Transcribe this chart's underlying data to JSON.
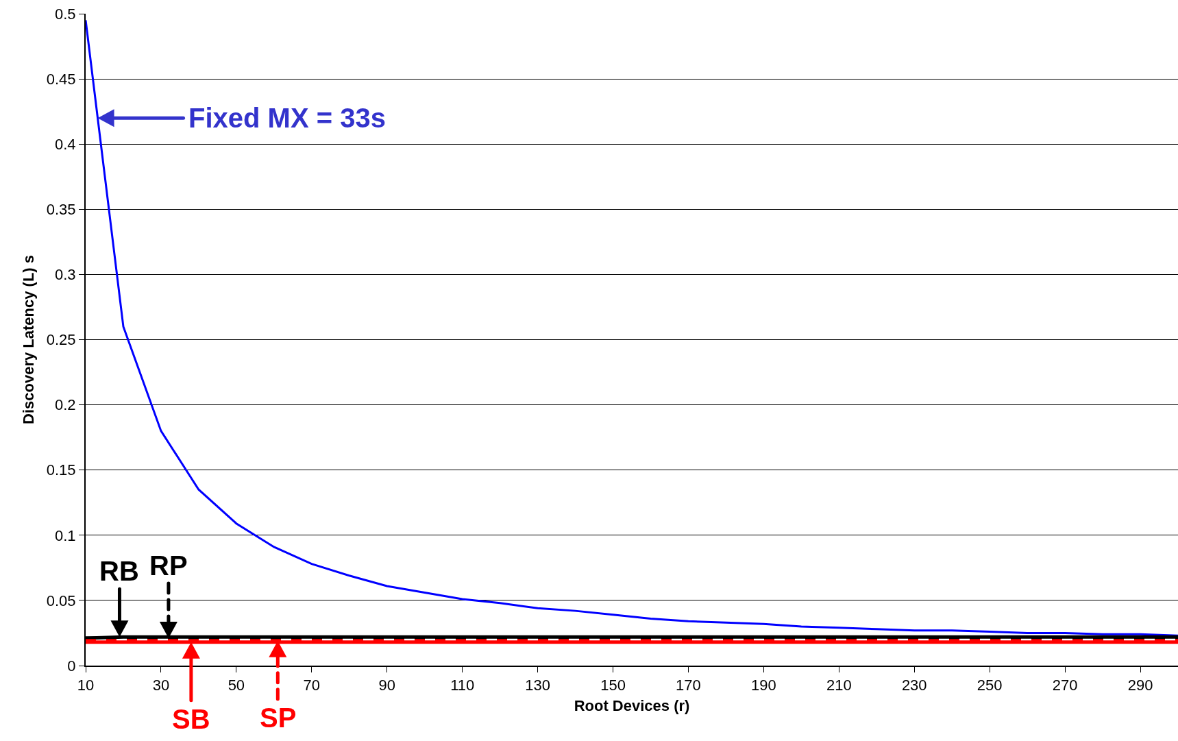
{
  "chart_data": {
    "type": "line",
    "xlabel": "Root Devices (r)",
    "ylabel": "Discovery Latency (L) s",
    "x": [
      10,
      20,
      30,
      40,
      50,
      60,
      70,
      80,
      90,
      100,
      110,
      120,
      130,
      140,
      150,
      160,
      170,
      180,
      190,
      200,
      210,
      220,
      230,
      240,
      250,
      260,
      270,
      280,
      290,
      300
    ],
    "series": [
      {
        "name": "Fixed MX = 33s",
        "color": "#0000ff",
        "values": [
          0.495,
          0.26,
          0.18,
          0.135,
          0.109,
          0.091,
          0.078,
          0.069,
          0.061,
          0.056,
          0.051,
          0.048,
          0.044,
          0.042,
          0.039,
          0.036,
          0.034,
          0.033,
          0.032,
          0.03,
          0.029,
          0.028,
          0.027,
          0.027,
          0.026,
          0.025,
          0.025,
          0.024,
          0.024,
          0.023
        ]
      },
      {
        "color": "#000000",
        "line_style": "solid",
        "values": [
          0.021,
          0.022,
          0.022,
          0.022,
          0.022,
          0.022,
          0.022,
          0.022,
          0.022,
          0.022,
          0.022,
          0.022,
          0.022,
          0.022,
          0.022,
          0.022,
          0.022,
          0.022,
          0.022,
          0.022,
          0.022,
          0.022,
          0.022,
          0.022,
          0.022,
          0.022,
          0.022,
          0.022,
          0.022,
          0.022
        ]
      },
      {
        "color": "#000000",
        "line_style": "dashed",
        "values": [
          0.021,
          0.021,
          0.021,
          0.021,
          0.021,
          0.021,
          0.021,
          0.021,
          0.021,
          0.021,
          0.021,
          0.021,
          0.021,
          0.021,
          0.021,
          0.021,
          0.021,
          0.021,
          0.021,
          0.021,
          0.021,
          0.021,
          0.021,
          0.021,
          0.021,
          0.021,
          0.021,
          0.021,
          0.021,
          0.021
        ]
      },
      {
        "color": "#ff0000",
        "line_style": "solid",
        "values": [
          0.018,
          0.018,
          0.018,
          0.018,
          0.018,
          0.018,
          0.018,
          0.018,
          0.018,
          0.018,
          0.018,
          0.018,
          0.018,
          0.018,
          0.018,
          0.018,
          0.018,
          0.018,
          0.018,
          0.018,
          0.018,
          0.018,
          0.018,
          0.018,
          0.018,
          0.018,
          0.018,
          0.018,
          0.018,
          0.018
        ]
      },
      {
        "color": "#ff0000",
        "line_style": "dashed",
        "values": [
          0.019,
          0.019,
          0.019,
          0.019,
          0.019,
          0.019,
          0.019,
          0.019,
          0.019,
          0.019,
          0.019,
          0.019,
          0.019,
          0.019,
          0.019,
          0.019,
          0.019,
          0.019,
          0.019,
          0.019,
          0.019,
          0.019,
          0.019,
          0.019,
          0.019,
          0.019,
          0.019,
          0.019,
          0.019,
          0.019
        ]
      }
    ],
    "annotations": [
      {
        "text": "RB",
        "x": 19,
        "y": 0.022
      },
      {
        "text": "RP",
        "x": 32,
        "y": 0.021
      },
      {
        "text": "SB",
        "x": 38,
        "y": 0.018
      },
      {
        "text": "SP",
        "x": 61,
        "y": 0.019
      }
    ],
    "xlim": [
      10,
      300
    ],
    "xticks": [
      10,
      30,
      50,
      70,
      90,
      110,
      130,
      150,
      170,
      190,
      210,
      230,
      250,
      270,
      290
    ],
    "ylim": [
      0,
      0.5
    ],
    "yticks": [
      0,
      0.05,
      0.1,
      0.15,
      0.2,
      0.25,
      0.3,
      0.35,
      0.4,
      0.45,
      0.5
    ],
    "grid": "y",
    "marker": "none"
  }
}
